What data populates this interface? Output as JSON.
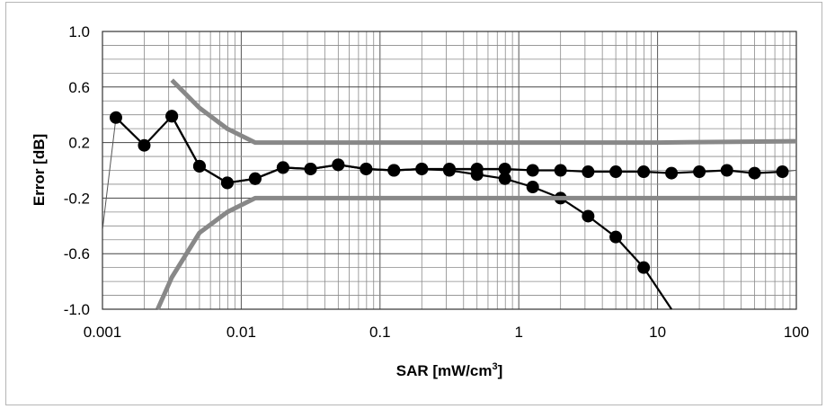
{
  "chart_data": {
    "type": "line",
    "title": "",
    "xlabel": "SAR [mW/cm",
    "xlabel_sup": "3",
    "xlabel_end": "]",
    "ylabel": "Error [dB]",
    "xscale": "log",
    "xlim": [
      0.001,
      100
    ],
    "ylim": [
      -1.0,
      1.0
    ],
    "x_ticks": [
      0.001,
      0.01,
      0.1,
      1,
      10,
      100
    ],
    "x_tick_labels": [
      "0.001",
      "0.01",
      "0.1",
      "1",
      "10",
      "100"
    ],
    "y_ticks": [
      1.0,
      0.6,
      0.2,
      -0.2,
      -0.6,
      -1.0
    ],
    "y_tick_labels": [
      "1.0",
      "0.6",
      "0.2",
      "-0.2",
      "-0.6",
      "-1.0"
    ],
    "grid": true,
    "legend": "none",
    "series": [
      {
        "style": "thin-line",
        "color": "#555555",
        "x": [
          0.001,
          0.00125,
          0.002,
          0.00316,
          0.005,
          0.00794,
          0.0126,
          0.02,
          0.0316,
          0.05,
          0.0794,
          0.126,
          0.2,
          0.316,
          0.5,
          0.794,
          1.26,
          2,
          3.16,
          5,
          7.94,
          12.6,
          20,
          31.6,
          50,
          79.4,
          100
        ],
        "y": [
          -0.43,
          0.38,
          0.18,
          0.39,
          0.03,
          -0.09,
          -0.06,
          0.02,
          0.01,
          0.04,
          0.01,
          0.0,
          0.01,
          0.01,
          0.01,
          0.01,
          0.0,
          0.0,
          -0.01,
          -0.01,
          -0.01,
          -0.02,
          -0.01,
          0.0,
          -0.02,
          -0.01,
          0.0
        ]
      },
      {
        "style": "thick-line-markers",
        "color": "#000000",
        "x": [
          0.00125,
          0.002,
          0.00316,
          0.005,
          0.00794,
          0.0126,
          0.02,
          0.0316,
          0.05,
          0.0794,
          0.126,
          0.2,
          0.316,
          0.5,
          0.794,
          1.26,
          2,
          3.16,
          5,
          7.94,
          12.6,
          20,
          31.6,
          50,
          79.4
        ],
        "y": [
          0.38,
          0.18,
          0.39,
          0.03,
          -0.09,
          -0.06,
          0.02,
          0.01,
          0.04,
          0.01,
          0.0,
          0.01,
          0.01,
          0.01,
          0.01,
          0.0,
          0.0,
          -0.01,
          -0.01,
          -0.01,
          -0.02,
          -0.01,
          0.0,
          -0.02,
          -0.01
        ]
      },
      {
        "style": "thick-line-markers",
        "color": "#000000",
        "x": [
          0.00316,
          0.005,
          0.00794,
          0.0126,
          0.02,
          0.0316,
          0.05,
          0.0794,
          0.126,
          0.2,
          0.316,
          0.5,
          0.794,
          1.26,
          2,
          3.16,
          5,
          7.94,
          12.6
        ],
        "y": [
          0.39,
          0.03,
          -0.09,
          -0.06,
          0.02,
          0.01,
          0.04,
          0.01,
          0.0,
          0.01,
          0.0,
          -0.03,
          -0.06,
          -0.12,
          -0.2,
          -0.33,
          -0.48,
          -0.7,
          -1.0
        ],
        "marker_count": 18
      },
      {
        "style": "thick-gray-band",
        "color": "#888888",
        "x": [
          0.00316,
          0.005,
          0.00794,
          0.0126,
          0.02,
          0.05,
          0.1,
          1,
          10,
          100
        ],
        "y": [
          0.65,
          0.45,
          0.3,
          0.2,
          0.2,
          0.2,
          0.2,
          0.2,
          0.2,
          0.21
        ]
      },
      {
        "style": "thick-gray-band",
        "color": "#888888",
        "x": [
          0.0025,
          0.00316,
          0.005,
          0.00794,
          0.0126,
          0.02,
          0.05,
          0.1,
          1,
          10,
          100
        ],
        "y": [
          -1.0,
          -0.77,
          -0.45,
          -0.3,
          -0.2,
          -0.2,
          -0.2,
          -0.2,
          -0.2,
          -0.2,
          -0.2
        ]
      }
    ]
  }
}
